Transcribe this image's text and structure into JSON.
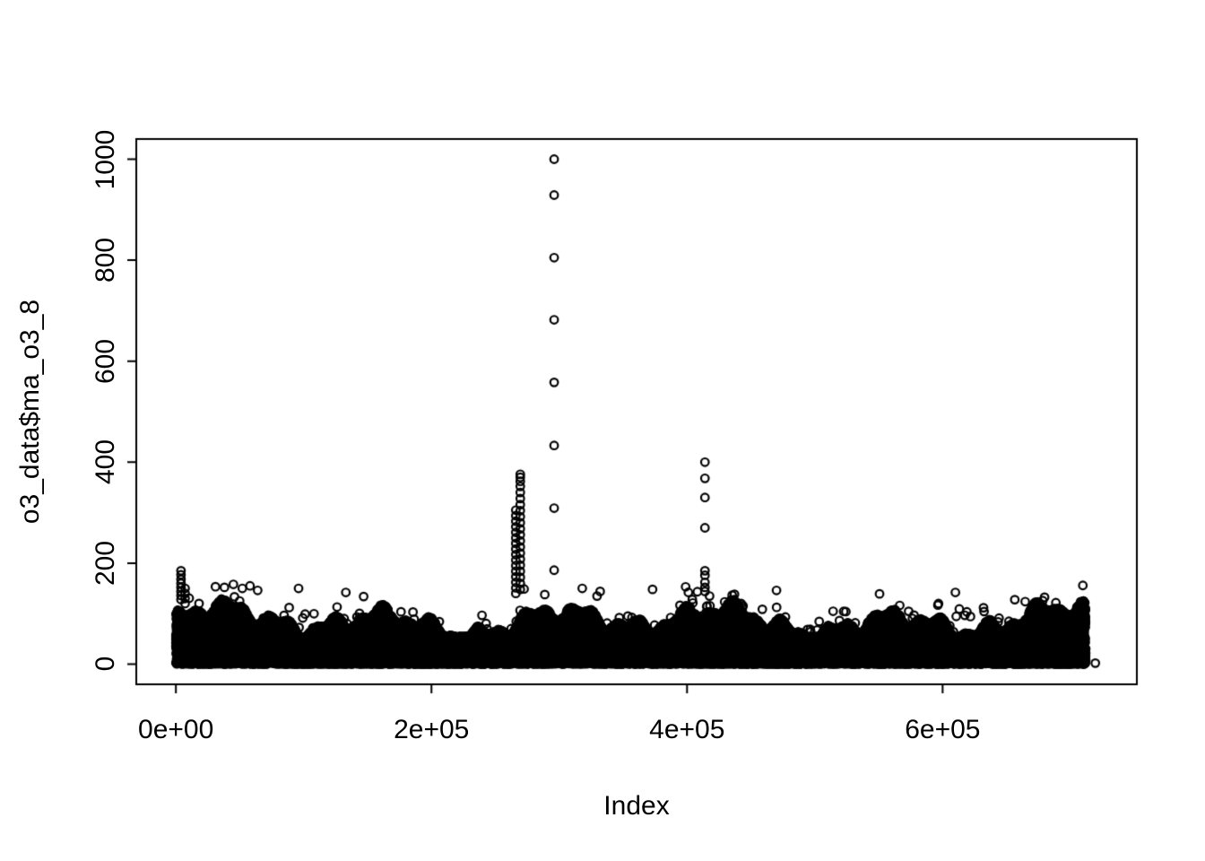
{
  "chart_data": {
    "type": "scatter",
    "title": "",
    "xlabel": "Index",
    "ylabel": "o3_data$ma_o3_8",
    "xlim": [
      -31000,
      752000
    ],
    "ylim": [
      -40,
      1040
    ],
    "grid": false,
    "legend": null,
    "x_ticks": [
      {
        "value": 0,
        "label": "0e+00"
      },
      {
        "value": 200000,
        "label": "2e+05"
      },
      {
        "value": 400000,
        "label": "4e+05"
      },
      {
        "value": 600000,
        "label": "6e+05"
      }
    ],
    "y_ticks": [
      {
        "value": 0,
        "label": "0"
      },
      {
        "value": 200,
        "label": "200"
      },
      {
        "value": 400,
        "label": "400"
      },
      {
        "value": 600,
        "label": "600"
      },
      {
        "value": 800,
        "label": "800"
      },
      {
        "value": 1000,
        "label": "1000"
      }
    ],
    "marker": {
      "shape": "open-circle",
      "color": "#000000",
      "radius_px": 4.3,
      "stroke_px": 2.2
    },
    "n_points_approx": 723000,
    "dense_band": {
      "seed": 42,
      "n_points": 26000,
      "n_bottom_extra": 6000,
      "n_floaters": 90,
      "x_min": 0,
      "x_max": 712000,
      "y_top_typical": 130,
      "note": "hundreds of thousands of overlapping open circles form a solid black band from 0 up to roughly 60-150"
    },
    "spikes": [
      {
        "x": 4000,
        "ys": [
          128,
          136,
          144,
          152,
          160,
          168,
          177,
          185
        ]
      },
      {
        "x": 7200,
        "ys": [
          120,
          130,
          140,
          150
        ]
      },
      {
        "x": 266000,
        "ys": [
          140,
          151,
          162,
          173,
          184,
          195,
          206,
          217,
          228,
          239,
          250,
          261,
          272,
          283,
          294,
          305
        ]
      },
      {
        "x": 269500,
        "ys": [
          148,
          160,
          172,
          184,
          196,
          208,
          220,
          232,
          244,
          256,
          268,
          280,
          292,
          304,
          316,
          328,
          340,
          352,
          362,
          370,
          376
        ]
      },
      {
        "x": 296000,
        "ys": [
          186,
          309,
          433,
          558,
          682,
          805,
          929,
          1000
        ]
      },
      {
        "x": 414000,
        "ys": [
          144,
          152,
          162,
          176,
          185,
          270,
          330,
          368,
          400
        ]
      }
    ],
    "isolated_points": [
      {
        "x": 38000,
        "y": 152
      },
      {
        "x": 45000,
        "y": 158
      },
      {
        "x": 52000,
        "y": 150
      },
      {
        "x": 58000,
        "y": 155
      },
      {
        "x": 64000,
        "y": 146
      },
      {
        "x": 96000,
        "y": 150
      },
      {
        "x": 133000,
        "y": 142
      },
      {
        "x": 318000,
        "y": 150
      },
      {
        "x": 332000,
        "y": 144
      },
      {
        "x": 373000,
        "y": 148
      },
      {
        "x": 470000,
        "y": 146
      },
      {
        "x": 610000,
        "y": 142
      },
      {
        "x": 719500,
        "y": 2
      }
    ],
    "axis_color": "#000000",
    "background_color": "#ffffff"
  }
}
